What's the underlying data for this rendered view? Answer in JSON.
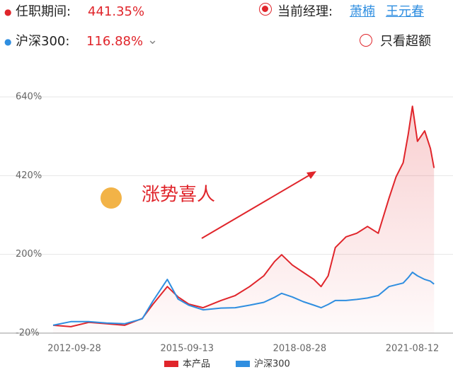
{
  "header": {
    "tenure_label": "任职期间:",
    "tenure_value": "441.35%",
    "manager_label": "当前经理:",
    "managers": [
      "萧楠",
      "王元春"
    ],
    "index_label": "沪深300:",
    "index_value": "116.88%",
    "excess_toggle": "只看超额"
  },
  "chart_data": {
    "type": "line",
    "annotation": "涨势喜人",
    "x": [
      "2012-03-08",
      "2012-08-25",
      "2013-02-13",
      "2013-08-03",
      "2014-01-22",
      "2014-07-11",
      "2014-10-22",
      "2015-03-08",
      "2015-06-19",
      "2015-09-29",
      "2016-02-14",
      "2016-08-03",
      "2016-12-18",
      "2017-05-05",
      "2017-09-18",
      "2017-12-30",
      "2018-03-08",
      "2018-06-19",
      "2018-09-30",
      "2019-01-11",
      "2019-03-21",
      "2019-05-28",
      "2019-08-04",
      "2019-11-15",
      "2020-02-26",
      "2020-06-08",
      "2020-09-19",
      "2020-12-31",
      "2021-03-09",
      "2021-05-16",
      "2021-07-03",
      "2021-08-13",
      "2021-09-30",
      "2021-12-08",
      "2022-02-01",
      "2022-03-08"
    ],
    "series": [
      {
        "name": "本产品",
        "color": "#e0252b",
        "area": true,
        "values": [
          2,
          -2,
          10,
          6,
          2,
          21,
          61,
          110,
          81,
          61,
          51,
          71,
          85,
          110,
          140,
          180,
          199,
          170,
          150,
          130,
          110,
          140,
          219,
          249,
          259,
          278,
          259,
          357,
          417,
          456,
          535,
          614,
          516,
          545,
          496,
          441.35
        ]
      },
      {
        "name": "沪深300",
        "color": "#2f8ee0",
        "values": [
          2,
          12,
          12,
          8,
          6,
          20,
          70,
          130,
          75,
          58,
          45,
          50,
          51,
          58,
          66,
          80,
          91,
          81,
          68,
          58,
          51,
          60,
          71,
          71,
          74,
          78,
          85,
          110,
          115,
          120,
          135,
          150,
          140,
          130,
          125,
          116.88
        ]
      }
    ],
    "xlim": [
      "2012-03-08",
      "2022-03-20"
    ],
    "xticks": [
      "2012-09-28",
      "2015-09-13",
      "2018-08-28",
      "2021-08-12"
    ],
    "ylim": [
      -20,
      640
    ],
    "yticks": [
      {
        "value": -20,
        "label": "-20%"
      },
      {
        "value": 200,
        "label": "200%"
      },
      {
        "value": 420,
        "label": "420%"
      },
      {
        "value": 640,
        "label": "640%"
      }
    ],
    "grid": true
  }
}
